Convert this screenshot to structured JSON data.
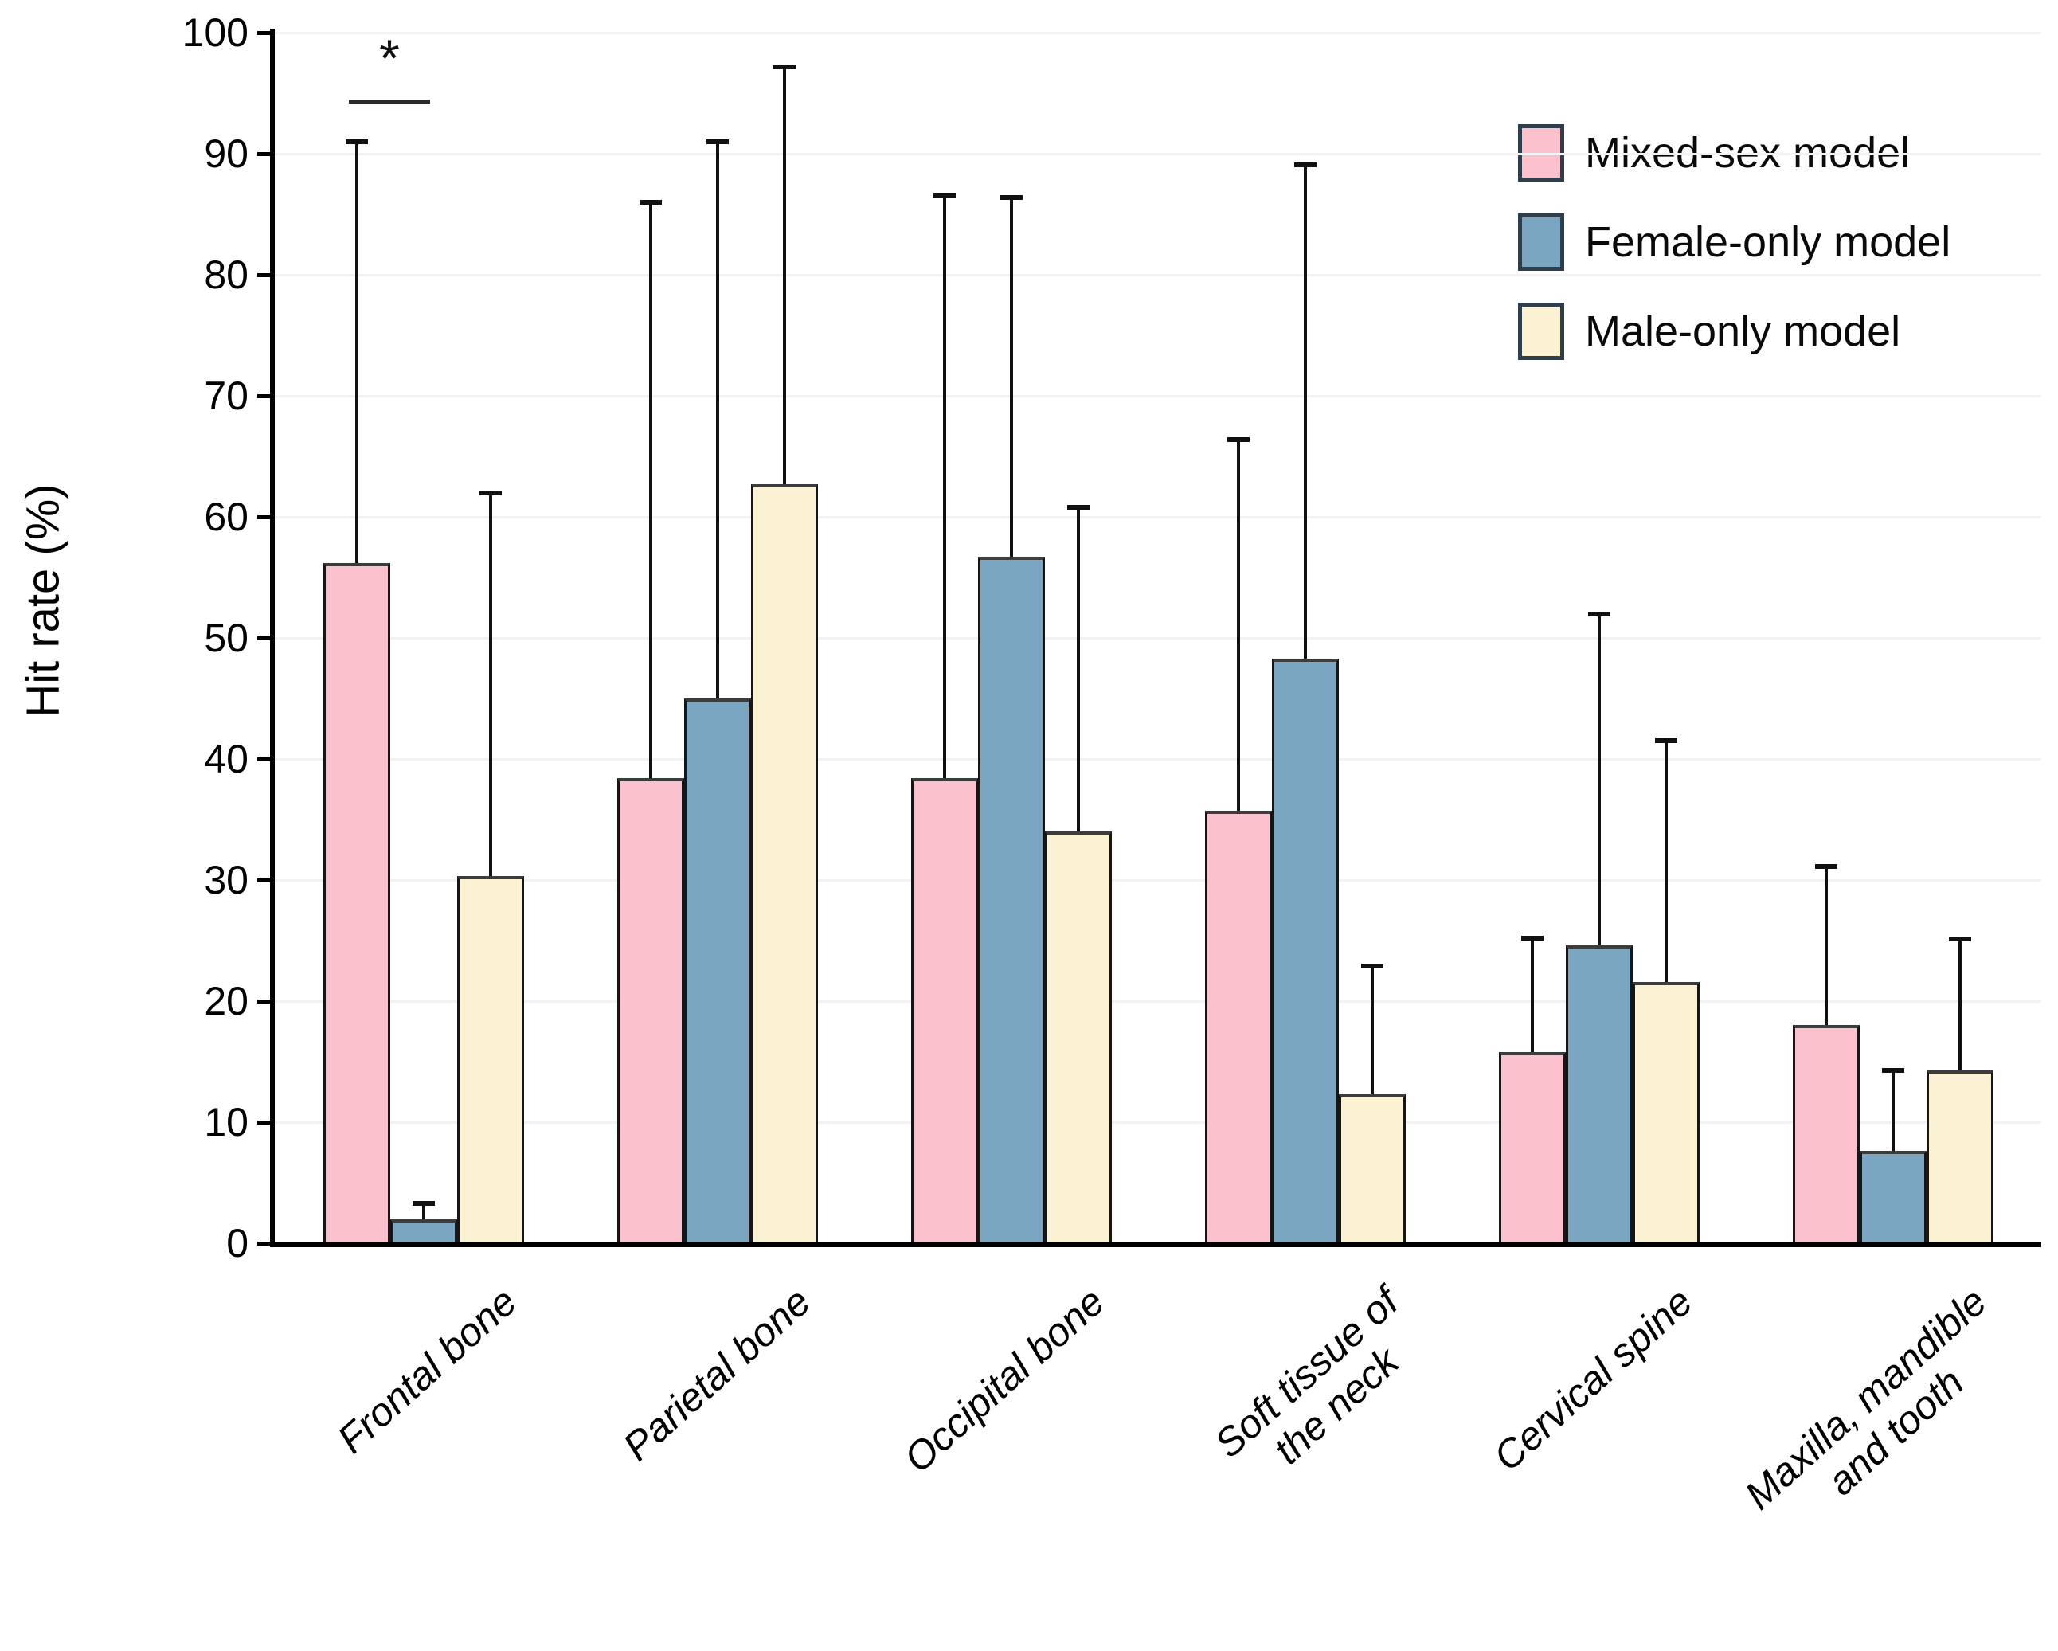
{
  "figure": {
    "y_axis_label": "Hit rate (%)"
  },
  "legend": {
    "position": "top-right",
    "items": [
      {
        "label": "Mixed-sex model",
        "color": "#FBC1CC"
      },
      {
        "label": "Female-only model",
        "color": "#7AA6C2"
      },
      {
        "label": "Male-only model",
        "color": "#FBF1D3"
      }
    ]
  },
  "chart_data": {
    "type": "bar",
    "title": "",
    "xlabel": "",
    "ylabel": "Hit rate (%)",
    "ylim": [
      0,
      100
    ],
    "yticks": [
      0,
      10,
      20,
      30,
      40,
      50,
      60,
      70,
      80,
      90,
      100
    ],
    "grid": true,
    "legend_position": "top-right",
    "error_bars": "upper",
    "categories": [
      "Frontal bone",
      "Parietal bone",
      "Occipital bone",
      "Soft tissue of\nthe neck",
      "Cervical spine",
      "Maxilla, mandible\nand tooth"
    ],
    "series": [
      {
        "name": "Mixed-sex model",
        "color": "#FBC1CC",
        "values": [
          56.2,
          38.4,
          38.4,
          35.7,
          15.8,
          18.0
        ],
        "error_upper": [
          91.0,
          86.0,
          86.6,
          66.4,
          25.2,
          31.1
        ]
      },
      {
        "name": "Female-only model",
        "color": "#7AA6C2",
        "values": [
          2.0,
          45.0,
          56.7,
          48.3,
          24.6,
          7.6
        ],
        "error_upper": [
          3.3,
          91.0,
          86.4,
          89.1,
          52.0,
          14.3
        ]
      },
      {
        "name": "Male-only model",
        "color": "#FBF1D3",
        "values": [
          30.3,
          62.7,
          34.0,
          12.3,
          21.6,
          14.3
        ],
        "error_upper": [
          62.0,
          97.2,
          60.8,
          22.9,
          41.5,
          25.1
        ]
      }
    ],
    "significance": {
      "label": "*",
      "category_index": 0,
      "series_indices": [
        0,
        1
      ],
      "line_y_value": 94.5,
      "note": "bracket between Mixed-sex model and Female-only model over Frontal bone"
    }
  }
}
